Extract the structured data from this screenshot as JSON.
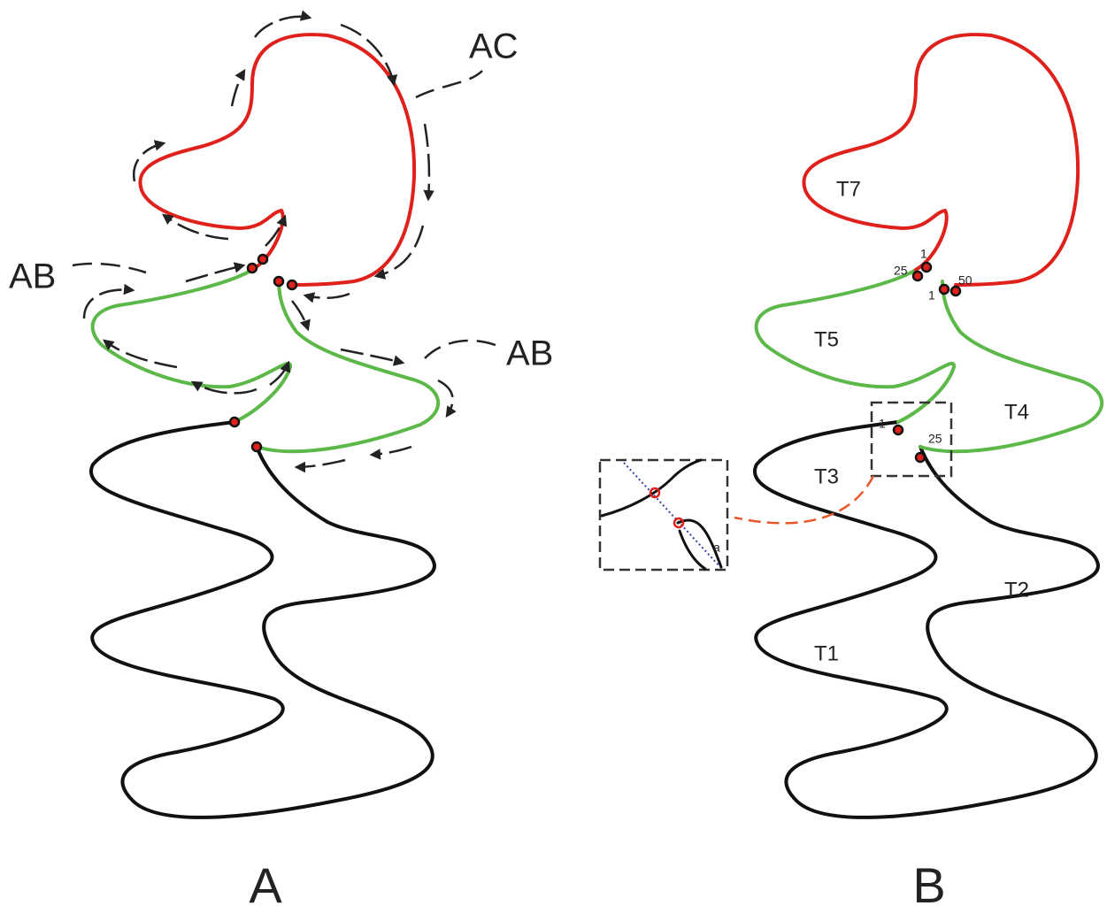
{
  "panels": [
    {
      "label": "A",
      "annotations": [
        "AC",
        "AB",
        "AB"
      ]
    },
    {
      "label": "B",
      "regions": [
        "T7",
        "T5",
        "T4",
        "T3",
        "T2",
        "T1"
      ],
      "point_labels": [
        25,
        1,
        1,
        50,
        1,
        25
      ],
      "inset_label": "a"
    }
  ]
}
